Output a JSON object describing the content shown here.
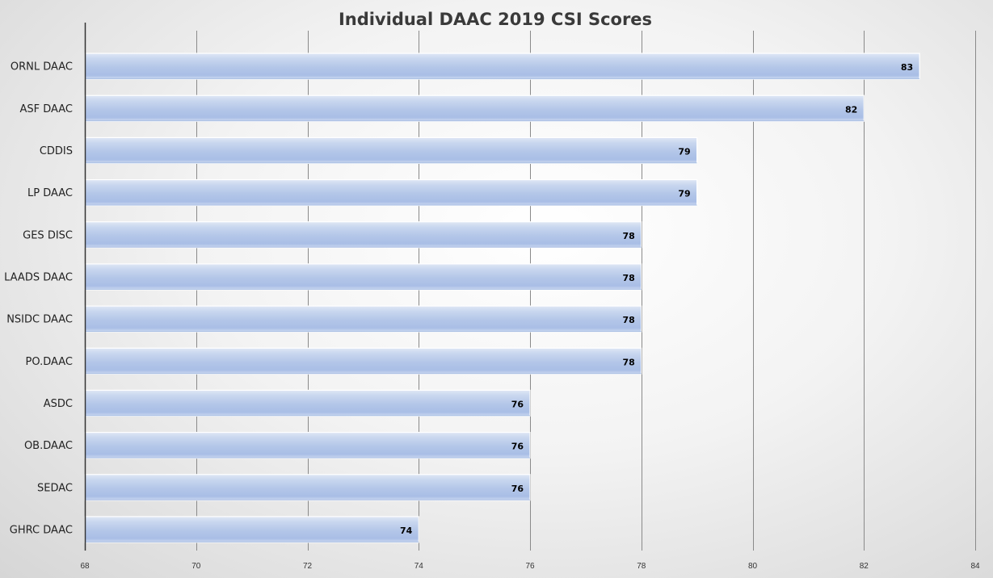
{
  "chart_data": {
    "type": "bar",
    "orientation": "horizontal",
    "title": "Individual DAAC 2019 CSI Scores",
    "xlabel": "",
    "ylabel": "",
    "categories": [
      "ORNL DAAC",
      "ASF DAAC",
      "CDDIS",
      "LP DAAC",
      "GES DISC",
      "LAADS DAAC",
      "NSIDC DAAC",
      "PO.DAAC",
      "ASDC",
      "OB.DAAC",
      "SEDAC",
      "GHRC DAAC"
    ],
    "values": [
      83,
      82,
      79,
      79,
      78,
      78,
      78,
      78,
      76,
      76,
      76,
      74
    ],
    "xlim": [
      68,
      84
    ],
    "xticks": [
      68,
      70,
      72,
      74,
      76,
      78,
      80,
      82,
      84
    ],
    "grid": "vertical",
    "legend": "none",
    "data_labels": true,
    "bar_color": "#b4c7e7",
    "bar_edge_color": "#7f9fd6"
  }
}
